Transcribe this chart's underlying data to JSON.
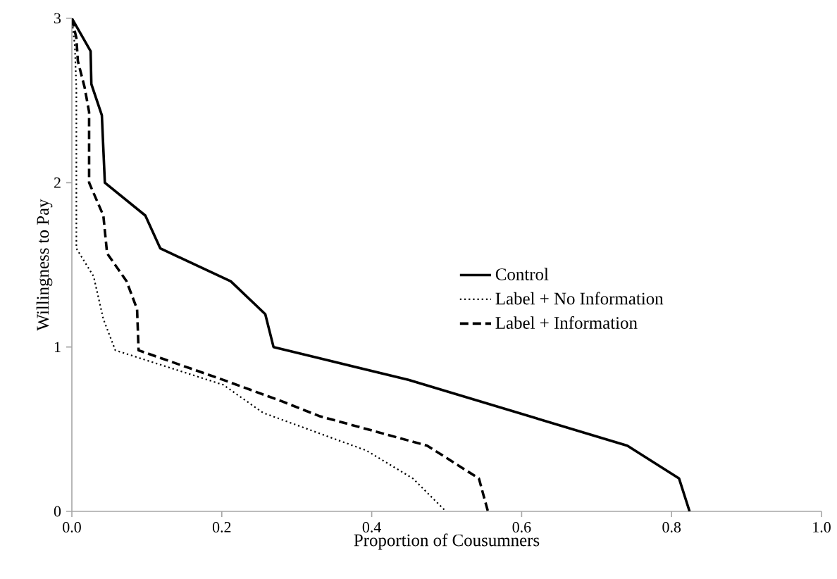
{
  "chart_data": {
    "type": "line",
    "xlabel": "Proportion of Cousumners",
    "ylabel": "Willingness to Pay",
    "xlim": [
      0,
      1
    ],
    "ylim": [
      0,
      3
    ],
    "xticks": [
      {
        "value": 0,
        "label": "0.0"
      },
      {
        "value": 0.2,
        "label": "0.2"
      },
      {
        "value": 0.4,
        "label": "0.4"
      },
      {
        "value": 0.6,
        "label": "0.6"
      },
      {
        "value": 0.8,
        "label": "0.8"
      },
      {
        "value": 1,
        "label": "1.0"
      }
    ],
    "yticks": [
      0,
      1,
      2,
      3
    ],
    "grid": false,
    "legend": "right",
    "marker": "none",
    "series": [
      {
        "name": "Control",
        "color": "#000000",
        "line_style": "solid",
        "x": [
          0,
          0.025,
          0.026,
          0.04,
          0.044,
          0.098,
          0.118,
          0.212,
          0.258,
          0.269,
          0.449,
          0.741,
          0.81,
          0.824
        ],
        "values": [
          3,
          2.8,
          2.6,
          2.41,
          2.0,
          1.8,
          1.6,
          1.4,
          1.2,
          1.0,
          0.8,
          0.4,
          0.2,
          0
        ]
      },
      {
        "name": "Label + No Information",
        "color": "#000000",
        "line_style": "dotted",
        "x": [
          0,
          0.004,
          0.006,
          0.006,
          0.029,
          0.042,
          0.058,
          0.202,
          0.255,
          0.393,
          0.455,
          0.499
        ],
        "values": [
          3,
          2.83,
          2.57,
          1.6,
          1.43,
          1.17,
          0.98,
          0.77,
          0.6,
          0.37,
          0.2,
          0
        ]
      },
      {
        "name": "Label + Information",
        "color": "#000000",
        "line_style": "dashed",
        "x": [
          0,
          0.006,
          0.008,
          0.017,
          0.023,
          0.023,
          0.042,
          0.047,
          0.073,
          0.087,
          0.089,
          0.202,
          0.28,
          0.33,
          0.474,
          0.543,
          0.555
        ],
        "values": [
          3,
          2.88,
          2.74,
          2.58,
          2.43,
          2.0,
          1.8,
          1.57,
          1.4,
          1.23,
          0.98,
          0.8,
          0.67,
          0.58,
          0.4,
          0.2,
          0
        ]
      }
    ]
  }
}
